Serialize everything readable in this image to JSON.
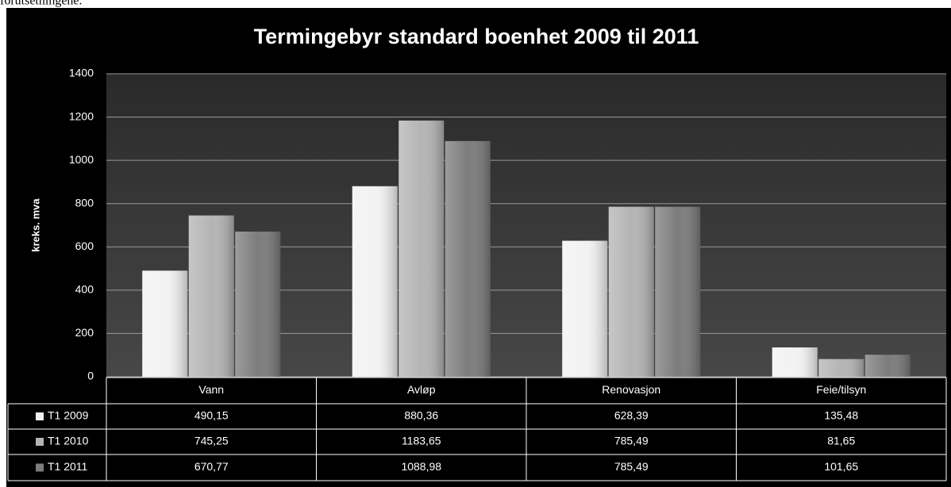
{
  "page_text": "forutsetningene.",
  "chart_data": {
    "type": "bar",
    "title": "Termingebyr standard boenhet 2009 til 2011",
    "y_label": "kreks. mva",
    "categories": [
      "Vann",
      "Avløp",
      "Renovasjon",
      "Feie/tilsyn"
    ],
    "series": [
      {
        "name": "T1 2009",
        "color": "#f2f2f2",
        "values": [
          490.15,
          880.36,
          628.39,
          135.48
        ],
        "value_labels": [
          "490,15",
          "880,36",
          "628,39",
          "135,48"
        ]
      },
      {
        "name": "T1 2010",
        "color": "#b4b4b4",
        "values": [
          745.25,
          1183.65,
          785.49,
          81.65
        ],
        "value_labels": [
          "745,25",
          "1183,65",
          "785,49",
          "81,65"
        ]
      },
      {
        "name": "T1 2011",
        "color": "#7c7c7c",
        "values": [
          670.77,
          1088.98,
          785.49,
          101.65
        ],
        "value_labels": [
          "670,77",
          "1088,98",
          "785,49",
          "101,65"
        ]
      }
    ],
    "ylim": [
      0,
      1400
    ],
    "yticks": [
      0,
      200,
      400,
      600,
      800,
      1000,
      1200,
      1400
    ],
    "grid": true
  }
}
